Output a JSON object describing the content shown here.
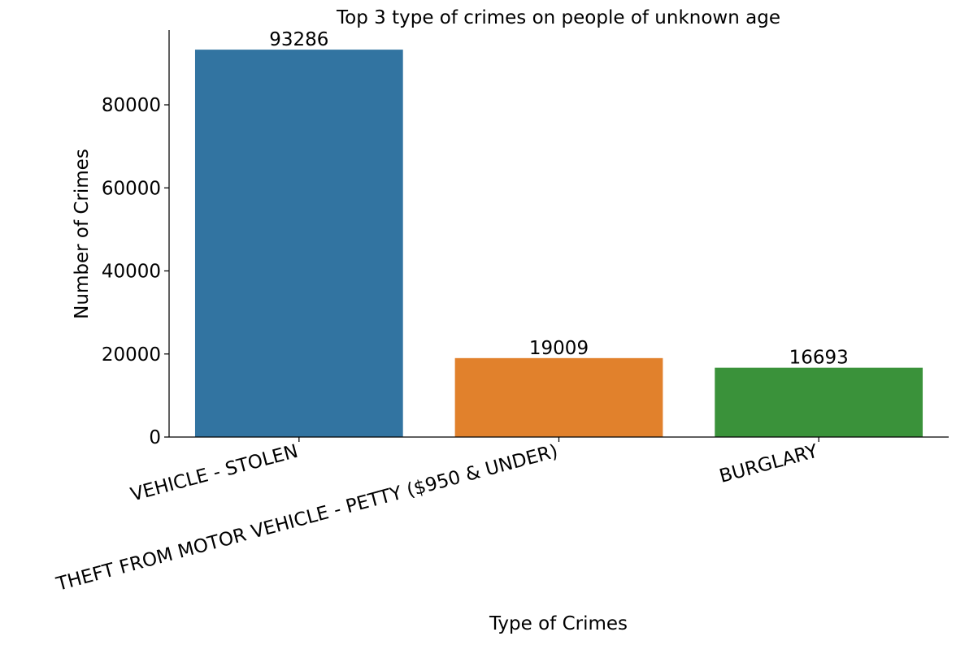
{
  "chart_data": {
    "type": "bar",
    "title": "Top 3 type of crimes on people of unknown age",
    "xlabel": "Type of Crimes",
    "ylabel": "Number of Crimes",
    "categories": [
      "VEHICLE - STOLEN",
      "THEFT FROM MOTOR VEHICLE - PETTY ($950 & UNDER)",
      "BURGLARY"
    ],
    "values": [
      93286,
      19009,
      16693
    ],
    "data_labels": [
      "93286",
      "19009",
      "16693"
    ],
    "colors": [
      "#3274a1",
      "#e1812c",
      "#3a923a"
    ],
    "ylim": [
      0,
      98000
    ],
    "yticks": [
      0,
      20000,
      40000,
      60000,
      80000
    ],
    "ytick_labels": [
      "0",
      "20000",
      "40000",
      "60000",
      "80000"
    ],
    "grid": false,
    "legend": "none",
    "spines": "left-bottom"
  }
}
